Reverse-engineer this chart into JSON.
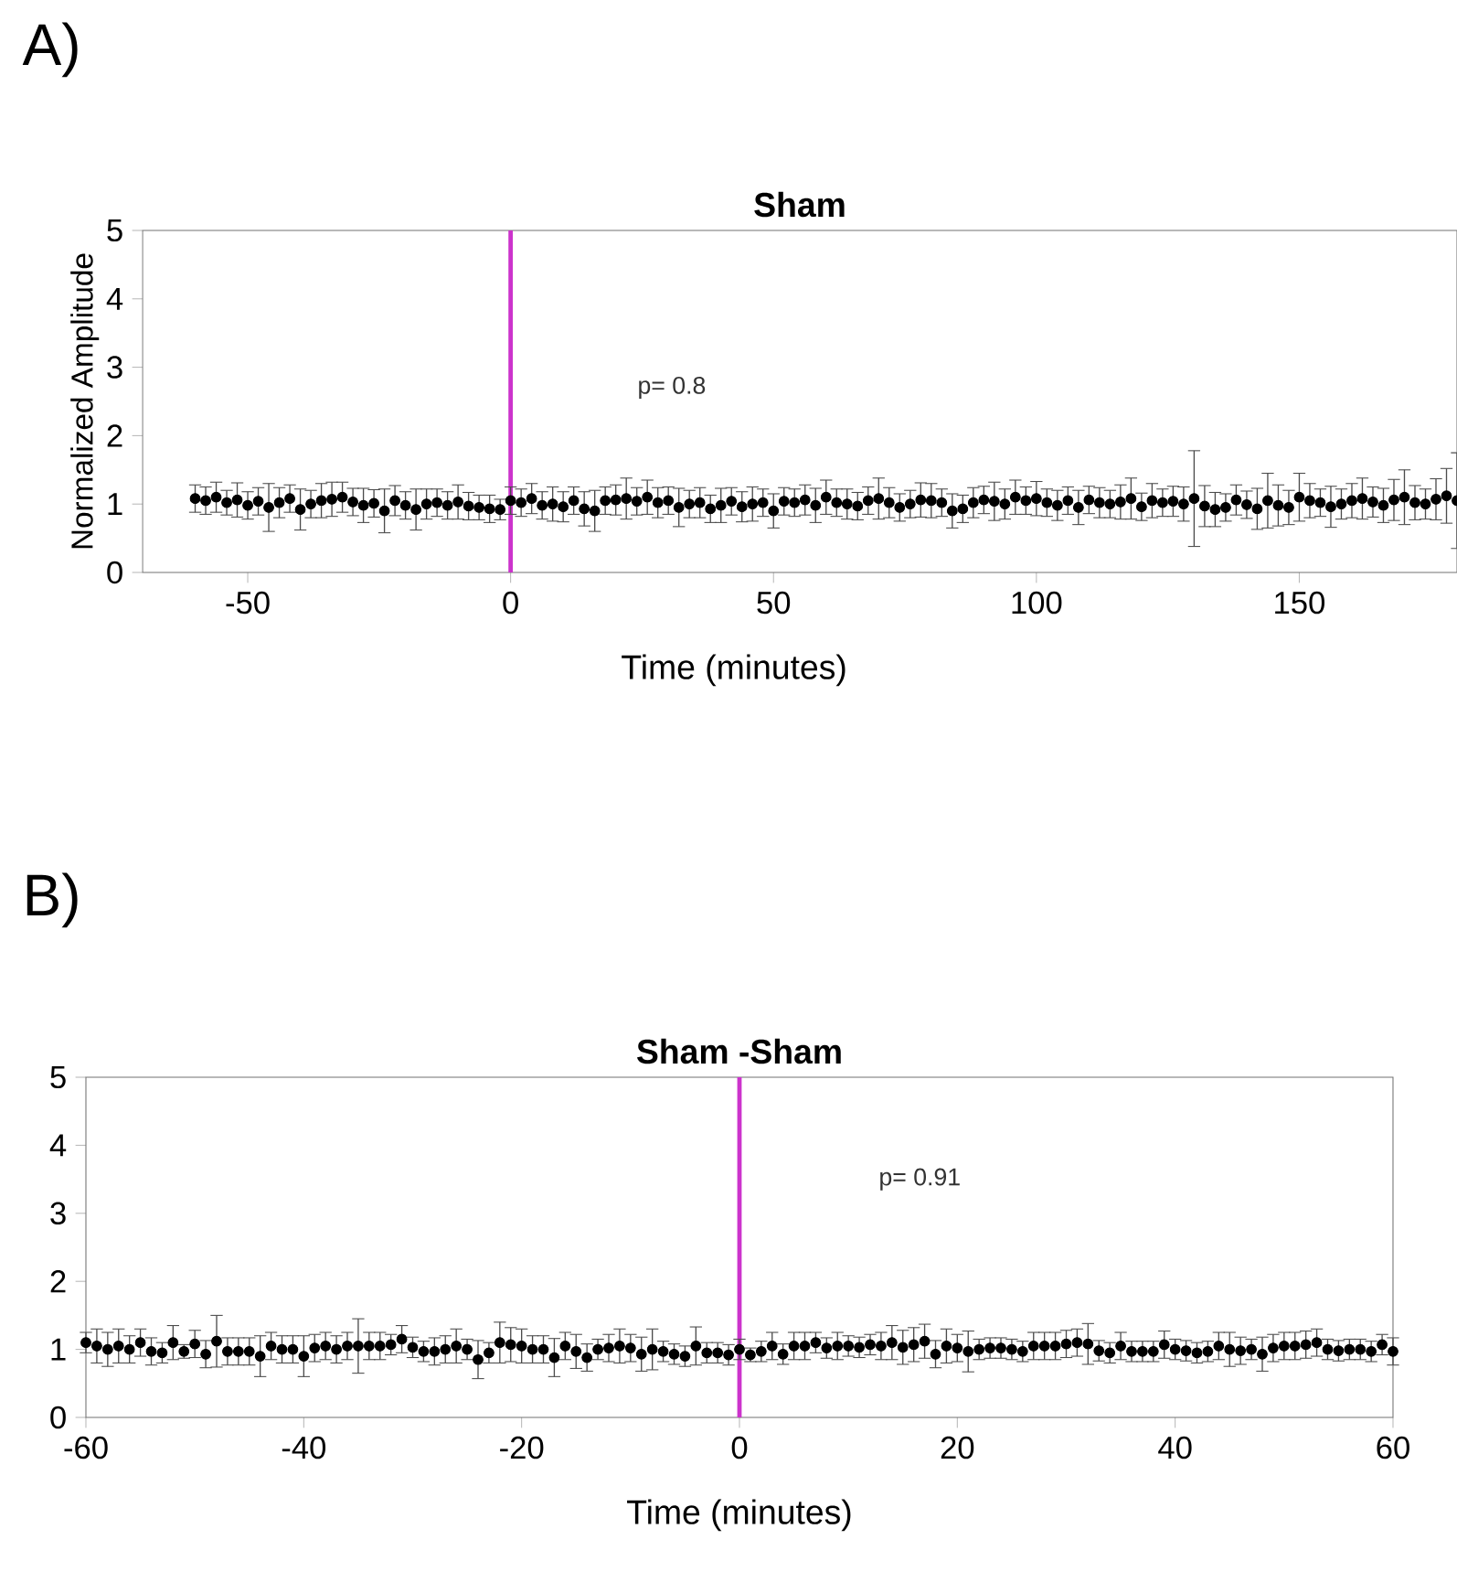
{
  "chart_data": [
    {
      "type": "scatter",
      "title": "Sham",
      "ylabel": "Normalized Amplitude",
      "xlabel": "Time (minutes)",
      "annotations": [
        "A)",
        "p= 0.8"
      ],
      "marker": "circle",
      "xlim": [
        -70,
        180
      ],
      "xticks": [
        -50,
        0,
        50,
        100,
        150
      ],
      "ylim": [
        0,
        5
      ],
      "yticks": [
        0,
        1,
        2,
        3,
        4,
        5
      ],
      "ref_lines": [
        {
          "axis": "x",
          "value": 0,
          "color": "#cc33cc"
        }
      ],
      "series": [
        {
          "color": "#000000",
          "x": [
            -60,
            -58,
            -56,
            -54,
            -52,
            -50,
            -48,
            -46,
            -44,
            -42,
            -40,
            -38,
            -36,
            -34,
            -32,
            -30,
            -28,
            -26,
            -24,
            -22,
            -20,
            -18,
            -16,
            -14,
            -12,
            -10,
            -8,
            -6,
            -4,
            -2,
            0,
            2,
            4,
            6,
            8,
            10,
            12,
            14,
            16,
            18,
            20,
            22,
            24,
            26,
            28,
            30,
            32,
            34,
            36,
            38,
            40,
            42,
            44,
            46,
            48,
            50,
            52,
            54,
            56,
            58,
            60,
            62,
            64,
            66,
            68,
            70,
            72,
            74,
            76,
            78,
            80,
            82,
            84,
            86,
            88,
            90,
            92,
            94,
            96,
            98,
            100,
            102,
            104,
            106,
            108,
            110,
            112,
            114,
            116,
            118,
            120,
            122,
            124,
            126,
            128,
            130,
            132,
            134,
            136,
            138,
            140,
            142,
            144,
            146,
            148,
            150,
            152,
            154,
            156,
            158,
            160,
            162,
            164,
            166,
            168,
            170,
            172,
            174,
            176,
            178,
            180
          ],
          "values": [
            1.08,
            1.05,
            1.1,
            1.02,
            1.06,
            0.98,
            1.04,
            0.95,
            1.02,
            1.08,
            0.92,
            1.0,
            1.05,
            1.07,
            1.1,
            1.03,
            0.98,
            1.01,
            0.9,
            1.05,
            0.98,
            0.92,
            1.0,
            1.02,
            0.98,
            1.03,
            0.97,
            0.95,
            0.93,
            0.92,
            1.05,
            1.02,
            1.08,
            0.98,
            1.0,
            0.96,
            1.05,
            0.93,
            0.9,
            1.05,
            1.06,
            1.08,
            1.04,
            1.1,
            1.02,
            1.05,
            0.95,
            1.0,
            1.02,
            0.93,
            0.98,
            1.04,
            0.96,
            1.0,
            1.02,
            0.9,
            1.04,
            1.02,
            1.06,
            0.98,
            1.1,
            1.02,
            1.0,
            0.97,
            1.05,
            1.08,
            1.02,
            0.95,
            1.0,
            1.06,
            1.05,
            1.02,
            0.9,
            0.93,
            1.02,
            1.06,
            1.04,
            1.0,
            1.1,
            1.05,
            1.08,
            1.02,
            0.98,
            1.05,
            0.95,
            1.06,
            1.02,
            1.0,
            1.03,
            1.08,
            0.96,
            1.05,
            1.02,
            1.04,
            1.0,
            1.08,
            0.97,
            0.92,
            0.95,
            1.06,
            0.99,
            0.93,
            1.05,
            0.98,
            0.95,
            1.1,
            1.05,
            1.02,
            0.96,
            1.0,
            1.05,
            1.08,
            1.03,
            0.98,
            1.06,
            1.1,
            1.02,
            1.0,
            1.07,
            1.12,
            1.05
          ],
          "errors": [
            0.2,
            0.2,
            0.22,
            0.18,
            0.25,
            0.2,
            0.2,
            0.35,
            0.22,
            0.2,
            0.3,
            0.2,
            0.25,
            0.25,
            0.22,
            0.2,
            0.25,
            0.2,
            0.32,
            0.22,
            0.2,
            0.3,
            0.22,
            0.2,
            0.2,
            0.25,
            0.2,
            0.18,
            0.2,
            0.15,
            0.2,
            0.2,
            0.22,
            0.2,
            0.25,
            0.22,
            0.2,
            0.25,
            0.3,
            0.2,
            0.22,
            0.3,
            0.2,
            0.25,
            0.22,
            0.2,
            0.28,
            0.2,
            0.22,
            0.2,
            0.25,
            0.2,
            0.22,
            0.25,
            0.2,
            0.25,
            0.2,
            0.2,
            0.22,
            0.25,
            0.25,
            0.2,
            0.22,
            0.2,
            0.2,
            0.3,
            0.22,
            0.2,
            0.2,
            0.25,
            0.25,
            0.2,
            0.25,
            0.2,
            0.22,
            0.2,
            0.28,
            0.22,
            0.25,
            0.2,
            0.25,
            0.2,
            0.22,
            0.2,
            0.25,
            0.2,
            0.22,
            0.2,
            0.25,
            0.3,
            0.2,
            0.25,
            0.2,
            0.22,
            0.25,
            0.7,
            0.3,
            0.25,
            0.2,
            0.22,
            0.2,
            0.3,
            0.4,
            0.3,
            0.25,
            0.35,
            0.25,
            0.2,
            0.3,
            0.22,
            0.25,
            0.3,
            0.22,
            0.25,
            0.3,
            0.4,
            0.25,
            0.22,
            0.3,
            0.4,
            0.7
          ]
        }
      ]
    },
    {
      "type": "scatter",
      "title": "Sham -Sham",
      "xlabel": "Time (minutes)",
      "annotations": [
        "B)",
        "p= 0.91"
      ],
      "marker": "circle",
      "xlim": [
        -60,
        60
      ],
      "xticks": [
        -60,
        -40,
        -20,
        0,
        20,
        40,
        60
      ],
      "ylim": [
        0,
        5
      ],
      "yticks": [
        0,
        1,
        2,
        3,
        4,
        5
      ],
      "ref_lines": [
        {
          "axis": "x",
          "value": 0,
          "color": "#cc33cc"
        }
      ],
      "series": [
        {
          "color": "#000000",
          "x": [
            -60,
            -59,
            -58,
            -57,
            -56,
            -55,
            -54,
            -53,
            -52,
            -51,
            -50,
            -49,
            -48,
            -47,
            -46,
            -45,
            -44,
            -43,
            -42,
            -41,
            -40,
            -39,
            -38,
            -37,
            -36,
            -35,
            -34,
            -33,
            -32,
            -31,
            -30,
            -29,
            -28,
            -27,
            -26,
            -25,
            -24,
            -23,
            -22,
            -21,
            -20,
            -19,
            -18,
            -17,
            -16,
            -15,
            -14,
            -13,
            -12,
            -11,
            -10,
            -9,
            -8,
            -7,
            -6,
            -5,
            -4,
            -3,
            -2,
            -1,
            0,
            1,
            2,
            3,
            4,
            5,
            6,
            7,
            8,
            9,
            10,
            11,
            12,
            13,
            14,
            15,
            16,
            17,
            18,
            19,
            20,
            21,
            22,
            23,
            24,
            25,
            26,
            27,
            28,
            29,
            30,
            31,
            32,
            33,
            34,
            35,
            36,
            37,
            38,
            39,
            40,
            41,
            42,
            43,
            44,
            45,
            46,
            47,
            48,
            49,
            50,
            51,
            52,
            53,
            54,
            55,
            56,
            57,
            58,
            59,
            60
          ],
          "values": [
            1.1,
            1.05,
            1.0,
            1.05,
            1.0,
            1.1,
            0.97,
            0.95,
            1.1,
            0.97,
            1.08,
            0.93,
            1.12,
            0.97,
            0.97,
            0.97,
            0.9,
            1.05,
            1.0,
            1.0,
            0.9,
            1.02,
            1.05,
            1.0,
            1.05,
            1.05,
            1.05,
            1.05,
            1.07,
            1.15,
            1.03,
            0.97,
            0.97,
            1.0,
            1.05,
            1.0,
            0.85,
            0.95,
            1.1,
            1.07,
            1.05,
            1.0,
            1.0,
            0.88,
            1.05,
            0.97,
            0.88,
            1.0,
            1.02,
            1.05,
            1.02,
            0.93,
            1.0,
            0.97,
            0.93,
            0.9,
            1.05,
            0.95,
            0.95,
            0.92,
            1.0,
            0.92,
            0.97,
            1.05,
            0.93,
            1.05,
            1.05,
            1.1,
            1.02,
            1.05,
            1.05,
            1.03,
            1.07,
            1.05,
            1.1,
            1.03,
            1.07,
            1.12,
            0.93,
            1.05,
            1.02,
            0.97,
            1.0,
            1.02,
            1.02,
            1.0,
            0.97,
            1.05,
            1.05,
            1.05,
            1.08,
            1.1,
            1.08,
            0.98,
            0.95,
            1.05,
            0.97,
            0.97,
            0.97,
            1.07,
            1.0,
            0.98,
            0.95,
            0.97,
            1.05,
            1.0,
            0.98,
            1.0,
            0.93,
            1.02,
            1.05,
            1.05,
            1.07,
            1.1,
            1.0,
            0.98,
            1.0,
            1.0,
            0.97,
            1.07,
            0.97
          ],
          "errors": [
            0.15,
            0.25,
            0.25,
            0.25,
            0.2,
            0.2,
            0.2,
            0.15,
            0.25,
            0.1,
            0.2,
            0.2,
            0.38,
            0.2,
            0.2,
            0.2,
            0.3,
            0.2,
            0.2,
            0.2,
            0.3,
            0.2,
            0.2,
            0.2,
            0.2,
            0.4,
            0.2,
            0.2,
            0.15,
            0.2,
            0.15,
            0.15,
            0.2,
            0.2,
            0.25,
            0.15,
            0.28,
            0.15,
            0.3,
            0.25,
            0.25,
            0.2,
            0.2,
            0.28,
            0.2,
            0.25,
            0.2,
            0.15,
            0.2,
            0.25,
            0.2,
            0.25,
            0.3,
            0.15,
            0.15,
            0.15,
            0.28,
            0.15,
            0.15,
            0.15,
            0.15,
            0.1,
            0.15,
            0.2,
            0.15,
            0.2,
            0.2,
            0.15,
            0.15,
            0.2,
            0.15,
            0.15,
            0.15,
            0.2,
            0.25,
            0.25,
            0.25,
            0.25,
            0.2,
            0.25,
            0.2,
            0.3,
            0.15,
            0.15,
            0.15,
            0.15,
            0.15,
            0.2,
            0.2,
            0.2,
            0.2,
            0.2,
            0.3,
            0.15,
            0.15,
            0.2,
            0.15,
            0.15,
            0.15,
            0.2,
            0.15,
            0.15,
            0.15,
            0.15,
            0.2,
            0.25,
            0.2,
            0.15,
            0.25,
            0.2,
            0.2,
            0.2,
            0.2,
            0.2,
            0.15,
            0.15,
            0.15,
            0.15,
            0.15,
            0.15,
            0.2
          ]
        }
      ]
    }
  ]
}
